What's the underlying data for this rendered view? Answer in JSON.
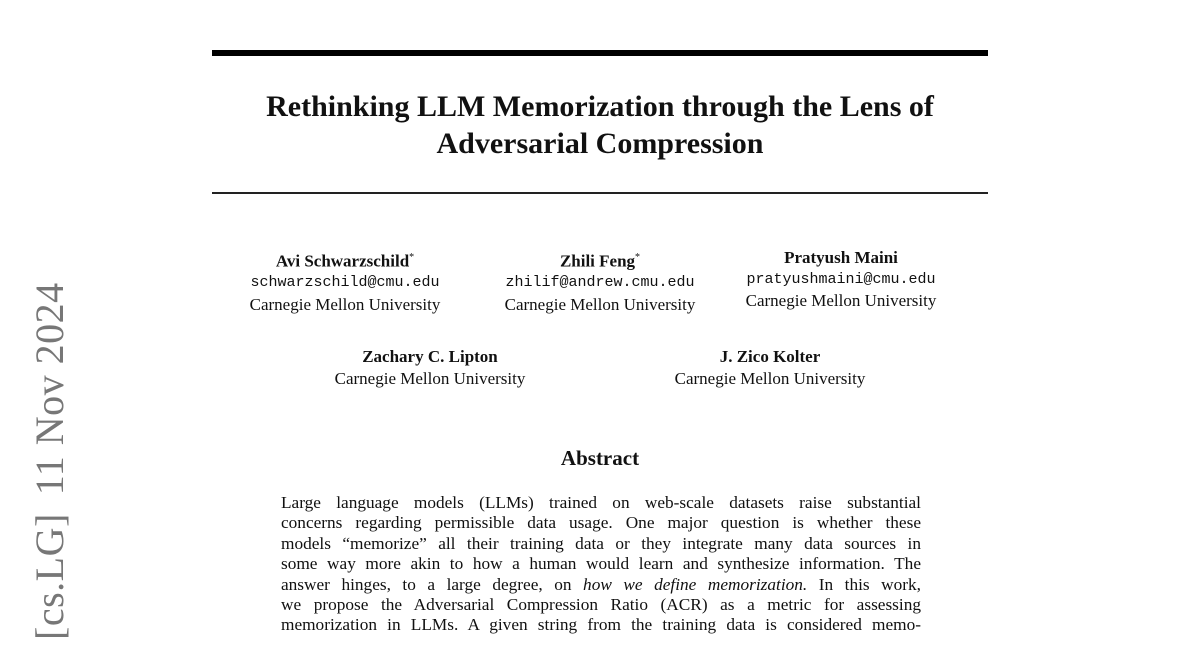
{
  "stamp": {
    "category": "[cs.LG]",
    "date": "11 Nov 2024"
  },
  "title": [
    "Rethinking LLM Memorization through the Lens of",
    "Adversarial Compression"
  ],
  "authors": [
    {
      "name": "Avi Schwarzschild",
      "mark": "*",
      "email": "schwarzschild@cmu.edu",
      "affiliation": "Carnegie Mellon University"
    },
    {
      "name": "Zhili Feng",
      "mark": "*",
      "email": "zhilif@andrew.cmu.edu",
      "affiliation": "Carnegie Mellon University"
    },
    {
      "name": "Pratyush Maini",
      "mark": "",
      "email": "pratyushmaini@cmu.edu",
      "affiliation": "Carnegie Mellon University"
    },
    {
      "name": "Zachary C. Lipton",
      "affiliation": "Carnegie Mellon University"
    },
    {
      "name": "J. Zico Kolter",
      "affiliation": "Carnegie Mellon University"
    }
  ],
  "abstract": {
    "heading": "Abstract",
    "lines": [
      "Large language models (LLMs) trained on web-scale datasets raise substantial",
      "concerns regarding permissible data usage. One major question is whether these",
      "models “memorize” all their training data or they integrate many data sources in",
      "some way more akin to how a human would learn and synthesize information. The",
      {
        "pre": "answer hinges, to a large degree, on ",
        "em": "how we define memorization.",
        "post": " In this work,"
      },
      "we propose the Adversarial Compression Ratio (ACR) as a metric for assessing",
      "memorization in LLMs. A given string from the training data is considered memo-"
    ]
  }
}
